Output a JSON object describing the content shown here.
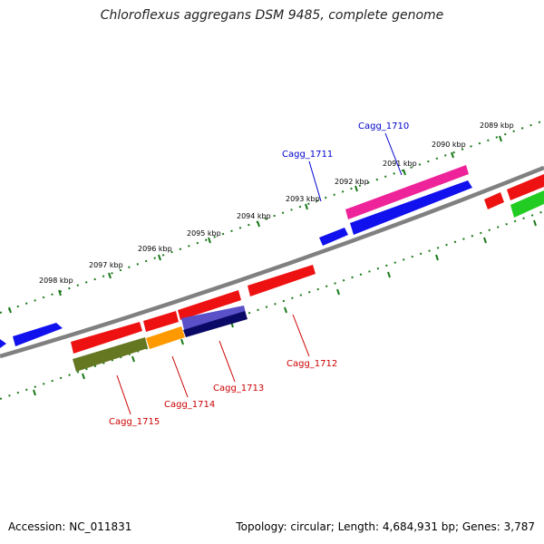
{
  "title": "Chloroflexus aggregans DSM 9485, complete genome",
  "footer": {
    "accession": "Accession: NC_011831",
    "summary": "Topology: circular; Length: 4,684,931 bp; Genes: 3,787"
  },
  "scale_labels": [
    "2089 kbp",
    "2090 kbp",
    "2091 kbp",
    "2092 kbp",
    "2093 kbp",
    "2094 kbp",
    "2095 kbp",
    "2096 kbp",
    "2097 kbp",
    "2098 kbp"
  ],
  "gene_labels": {
    "forward": [
      "Cagg_1710",
      "Cagg_1711"
    ],
    "reverse": [
      "Cagg_1712",
      "Cagg_1713",
      "Cagg_1714",
      "Cagg_1715"
    ]
  },
  "colors": {
    "backbone": "#808080",
    "tick": "#1a7a1a",
    "forward_label": "#0000cc",
    "reverse_label": "#cc0000",
    "red": "#ee1111",
    "blue": "#1111ee",
    "magenta": "#ee2299",
    "green": "#22cc22",
    "orange": "#ff9900",
    "olive": "#667722",
    "slate": "#5a50c8",
    "navy": "#0a0a66"
  }
}
